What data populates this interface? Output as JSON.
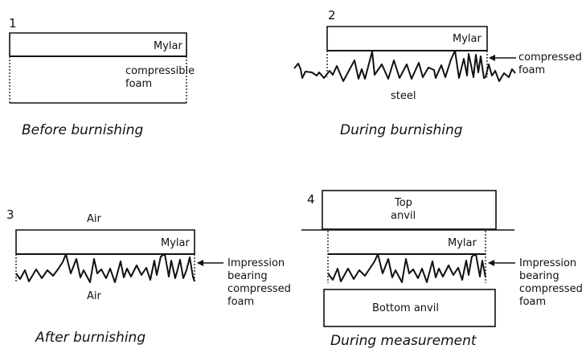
{
  "panels": [
    {
      "number": "1",
      "labels": {
        "film": "Mylar",
        "foam_line1": "compressible",
        "foam_line2": "foam"
      },
      "caption": "Before burnishing"
    },
    {
      "number": "2",
      "labels": {
        "film": "Mylar",
        "foam_line1": "compressed",
        "foam_line2": "foam",
        "base": "steel"
      },
      "caption": "During burnishing"
    },
    {
      "number": "3",
      "labels": {
        "top": "Air",
        "film": "Mylar",
        "bottom": "Air",
        "foam_line1": "Impression",
        "foam_line2": "bearing",
        "foam_line3": "compressed",
        "foam_line4": "foam"
      },
      "caption": "After burnishing"
    },
    {
      "number": "4",
      "labels": {
        "top_anvil_line1": "Top",
        "top_anvil_line2": "anvil",
        "film": "Mylar",
        "bottom_anvil": "Bottom anvil",
        "foam_line1": "Impression",
        "foam_line2": "bearing",
        "foam_line3": "compressed",
        "foam_line4": "foam"
      },
      "caption": "During measurement"
    }
  ]
}
